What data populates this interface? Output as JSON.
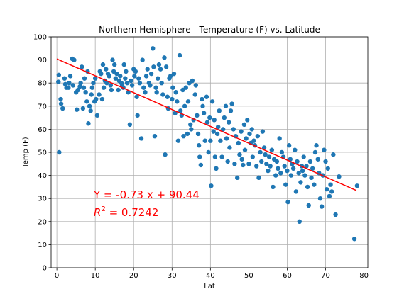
{
  "chart_data": {
    "type": "scatter",
    "title": "Northern Hemisphere - Temperature (F) vs. Latitude",
    "xlabel": "Lat",
    "ylabel": "Temp (F)",
    "xlim": [
      -1.5,
      81
    ],
    "ylim": [
      0,
      100
    ],
    "xticks": [
      0,
      10,
      20,
      30,
      40,
      50,
      60,
      70,
      80
    ],
    "yticks": [
      0,
      10,
      20,
      30,
      40,
      50,
      60,
      70,
      80,
      90,
      100
    ],
    "grid": true,
    "colors": {
      "points": "#1f77b4",
      "regression": "#ff0000",
      "grid": "#b0b0b0",
      "annotation": "#ff0000"
    },
    "regression": {
      "slope": -0.73,
      "intercept": 90.44,
      "x": [
        0,
        78
      ]
    },
    "annotations": {
      "equation": "Y = -0.73 x + 90.44",
      "r2_symbol": "R",
      "r2_sup": "2",
      "r2_value": " = 0.7242"
    },
    "points": [
      [
        0.5,
        83.5
      ],
      [
        0.4,
        80.5
      ],
      [
        0.6,
        50
      ],
      [
        1,
        73
      ],
      [
        1.1,
        71
      ],
      [
        1.5,
        69
      ],
      [
        2,
        82
      ],
      [
        2.2,
        79.5
      ],
      [
        2.5,
        78
      ],
      [
        3,
        78
      ],
      [
        3.2,
        80
      ],
      [
        3.5,
        83
      ],
      [
        4,
        90.5
      ],
      [
        4.2,
        79
      ],
      [
        4.5,
        90
      ],
      [
        5,
        76
      ],
      [
        5.2,
        68.5
      ],
      [
        5.5,
        77
      ],
      [
        6,
        78.5
      ],
      [
        6.2,
        80
      ],
      [
        6.5,
        87
      ],
      [
        6.8,
        69
      ],
      [
        7,
        78
      ],
      [
        7.2,
        82
      ],
      [
        7.5,
        76
      ],
      [
        7.8,
        72
      ],
      [
        8,
        85
      ],
      [
        8.2,
        62.5
      ],
      [
        8.5,
        70
      ],
      [
        8.8,
        68
      ],
      [
        9,
        75
      ],
      [
        9.2,
        78
      ],
      [
        9.5,
        80
      ],
      [
        9.8,
        72
      ],
      [
        10,
        82
      ],
      [
        10.2,
        73
      ],
      [
        10.5,
        66
      ],
      [
        11,
        75
      ],
      [
        11.2,
        85
      ],
      [
        11.5,
        84
      ],
      [
        11.8,
        73
      ],
      [
        12,
        88
      ],
      [
        12.2,
        78
      ],
      [
        12.5,
        81
      ],
      [
        12.8,
        86
      ],
      [
        13,
        80
      ],
      [
        13.3,
        84
      ],
      [
        13.6,
        83
      ],
      [
        14,
        79
      ],
      [
        14.2,
        77
      ],
      [
        14.5,
        90
      ],
      [
        14.8,
        85
      ],
      [
        15,
        88
      ],
      [
        15.3,
        82
      ],
      [
        15.6,
        84
      ],
      [
        16,
        77
      ],
      [
        16.2,
        81
      ],
      [
        16.5,
        83
      ],
      [
        16.8,
        80
      ],
      [
        17,
        79
      ],
      [
        17.3,
        78
      ],
      [
        17.5,
        88
      ],
      [
        17.8,
        82
      ],
      [
        18,
        85
      ],
      [
        18.3,
        80
      ],
      [
        18.6,
        76
      ],
      [
        19,
        62
      ],
      [
        19.3,
        81
      ],
      [
        19.6,
        79
      ],
      [
        20,
        86
      ],
      [
        20.2,
        83
      ],
      [
        20.5,
        85
      ],
      [
        20.8,
        74
      ],
      [
        21,
        66
      ],
      [
        21.3,
        82
      ],
      [
        21.6,
        80
      ],
      [
        22,
        56
      ],
      [
        22.3,
        90
      ],
      [
        22.6,
        78
      ],
      [
        23,
        76
      ],
      [
        23.3,
        83
      ],
      [
        23.6,
        86
      ],
      [
        24,
        80
      ],
      [
        24.3,
        79
      ],
      [
        24.6,
        84
      ],
      [
        25,
        95
      ],
      [
        25.2,
        87
      ],
      [
        25.5,
        57
      ],
      [
        25.8,
        78
      ],
      [
        26,
        76
      ],
      [
        26.3,
        82
      ],
      [
        26.6,
        88
      ],
      [
        27,
        86
      ],
      [
        27.3,
        80
      ],
      [
        27.6,
        75
      ],
      [
        28,
        91
      ],
      [
        28.2,
        49
      ],
      [
        28.5,
        87
      ],
      [
        28.8,
        74
      ],
      [
        29,
        69
      ],
      [
        29.3,
        82
      ],
      [
        29.6,
        83
      ],
      [
        30,
        73
      ],
      [
        30.2,
        78
      ],
      [
        30.5,
        84
      ],
      [
        30.8,
        67
      ],
      [
        31,
        76
      ],
      [
        31.3,
        72
      ],
      [
        31.6,
        55
      ],
      [
        32,
        92
      ],
      [
        32.2,
        68
      ],
      [
        32.5,
        66
      ],
      [
        32.8,
        77
      ],
      [
        33,
        57
      ],
      [
        33.3,
        70
      ],
      [
        33.6,
        78
      ],
      [
        34,
        58
      ],
      [
        34.2,
        72
      ],
      [
        34.5,
        80
      ],
      [
        34.8,
        62
      ],
      [
        35,
        60
      ],
      [
        35.3,
        81
      ],
      [
        35.6,
        64
      ],
      [
        36,
        75
      ],
      [
        36.2,
        79
      ],
      [
        36.5,
        66
      ],
      [
        36.8,
        58
      ],
      [
        37,
        53
      ],
      [
        37.2,
        48
      ],
      [
        37.5,
        44.5
      ],
      [
        37.8,
        73
      ],
      [
        38,
        70
      ],
      [
        38.3,
        67
      ],
      [
        38.6,
        55
      ],
      [
        39,
        74
      ],
      [
        39.2,
        63
      ],
      [
        39.5,
        50
      ],
      [
        39.8,
        65
      ],
      [
        40,
        55
      ],
      [
        40.2,
        35.5
      ],
      [
        40.5,
        72
      ],
      [
        40.8,
        59
      ],
      [
        41,
        64
      ],
      [
        41.2,
        48
      ],
      [
        41.5,
        43
      ],
      [
        41.8,
        58
      ],
      [
        42,
        61
      ],
      [
        42.3,
        68
      ],
      [
        42.6,
        55
      ],
      [
        43,
        48
      ],
      [
        43.3,
        60
      ],
      [
        43.6,
        65
      ],
      [
        44,
        70
      ],
      [
        44.2,
        56
      ],
      [
        44.5,
        46
      ],
      [
        44.8,
        63
      ],
      [
        45,
        52
      ],
      [
        45.3,
        68
      ],
      [
        45.6,
        71
      ],
      [
        46,
        60
      ],
      [
        46.3,
        45
      ],
      [
        46.6,
        57
      ],
      [
        47,
        39
      ],
      [
        47.3,
        54
      ],
      [
        47.6,
        49
      ],
      [
        48,
        59
      ],
      [
        48.2,
        47
      ],
      [
        48.5,
        44.5
      ],
      [
        48.8,
        62
      ],
      [
        49,
        51
      ],
      [
        49.3,
        56
      ],
      [
        49.6,
        64
      ],
      [
        50,
        45
      ],
      [
        50.2,
        58
      ],
      [
        50.5,
        54
      ],
      [
        50.8,
        60
      ],
      [
        51,
        48
      ],
      [
        51.3,
        55
      ],
      [
        51.6,
        53
      ],
      [
        52,
        44
      ],
      [
        52.3,
        57
      ],
      [
        52.6,
        39
      ],
      [
        53,
        50
      ],
      [
        53.3,
        46
      ],
      [
        53.6,
        59
      ],
      [
        54,
        52
      ],
      [
        54.3,
        49
      ],
      [
        54.6,
        45
      ],
      [
        55,
        42
      ],
      [
        55.3,
        48
      ],
      [
        55.6,
        44
      ],
      [
        56,
        51
      ],
      [
        56.3,
        35
      ],
      [
        56.6,
        47
      ],
      [
        57,
        40
      ],
      [
        57.3,
        46
      ],
      [
        57.6,
        43
      ],
      [
        58,
        56
      ],
      [
        58.3,
        41
      ],
      [
        58.6,
        50
      ],
      [
        59,
        48
      ],
      [
        59.3,
        44
      ],
      [
        59.6,
        36
      ],
      [
        60,
        42
      ],
      [
        60.2,
        28.5
      ],
      [
        60.5,
        53
      ],
      [
        60.8,
        47
      ],
      [
        61,
        40
      ],
      [
        61.3,
        45
      ],
      [
        61.6,
        43
      ],
      [
        62,
        51
      ],
      [
        62.3,
        33
      ],
      [
        62.6,
        46
      ],
      [
        63,
        41
      ],
      [
        63.2,
        20
      ],
      [
        63.5,
        37
      ],
      [
        63.8,
        44
      ],
      [
        64,
        42
      ],
      [
        64.3,
        48
      ],
      [
        64.6,
        40
      ],
      [
        65,
        44
      ],
      [
        65.3,
        35
      ],
      [
        65.6,
        27
      ],
      [
        66,
        46
      ],
      [
        66.3,
        39
      ],
      [
        66.6,
        43
      ],
      [
        67,
        36
      ],
      [
        67.3,
        50
      ],
      [
        67.6,
        53
      ],
      [
        68,
        47
      ],
      [
        68.3,
        41
      ],
      [
        68.6,
        30
      ],
      [
        69,
        26.5
      ],
      [
        69.3,
        40
      ],
      [
        69.6,
        51
      ],
      [
        70,
        46
      ],
      [
        70.3,
        34
      ],
      [
        70.6,
        43
      ],
      [
        71,
        31
      ],
      [
        71.3,
        36
      ],
      [
        71.6,
        33
      ],
      [
        72,
        49
      ],
      [
        72.6,
        23
      ],
      [
        73.5,
        39.5
      ],
      [
        77.5,
        12.5
      ],
      [
        78.2,
        35.5
      ]
    ]
  }
}
